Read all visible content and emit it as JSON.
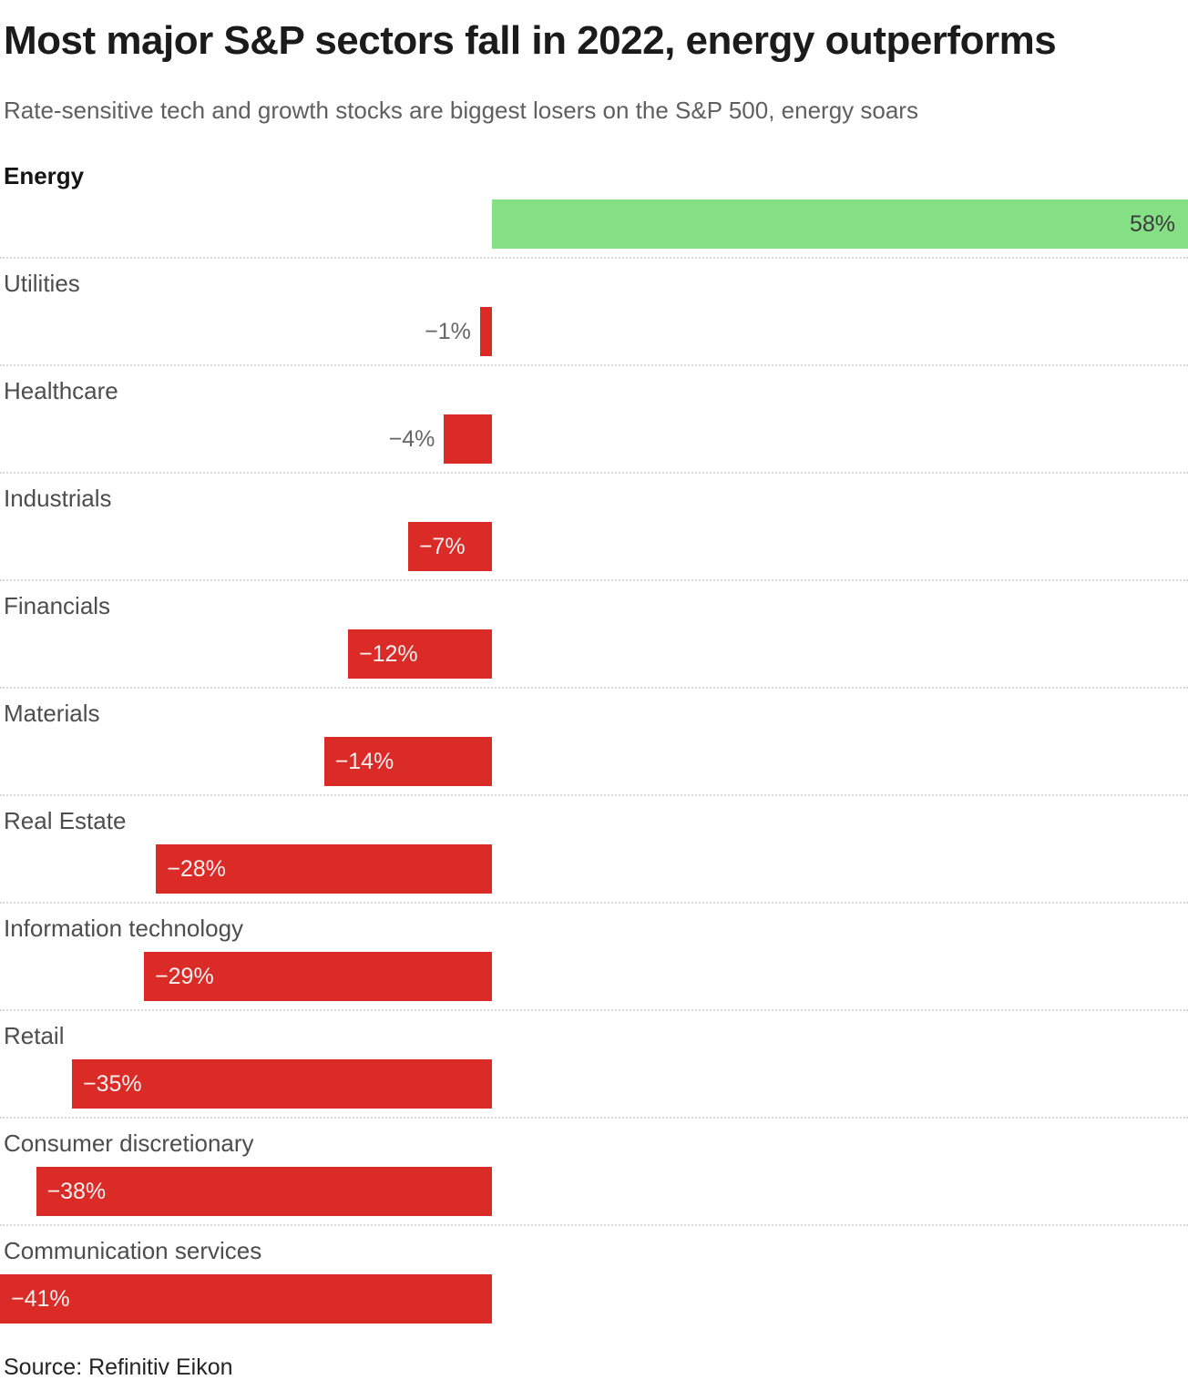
{
  "header": {
    "title": "Most major S&P sectors fall in 2022, energy outperforms",
    "subtitle": "Rate-sensitive tech and growth stocks are biggest losers on the S&P 500, energy soars"
  },
  "footer": {
    "source": "Source: Refinitiv Eikon"
  },
  "chart_data": {
    "type": "bar",
    "orientation": "horizontal",
    "unit": "%",
    "xlim": [
      -41,
      58
    ],
    "categories": [
      "Energy",
      "Utilities",
      "Healthcare",
      "Industrials",
      "Financials",
      "Materials",
      "Real Estate",
      "Information technology",
      "Retail",
      "Consumer discretionary",
      "Communication services"
    ],
    "values": [
      58,
      -1,
      -4,
      -7,
      -12,
      -14,
      -28,
      -29,
      -35,
      -38,
      -41
    ],
    "value_labels": [
      "58%",
      "−1%",
      "−4%",
      "−7%",
      "−12%",
      "−14%",
      "−28%",
      "−29%",
      "−35%",
      "−38%",
      "−41%"
    ],
    "emphasis_index": 0,
    "legend": false,
    "grid": "dotted-row-separators",
    "colors": {
      "positive_bar": "#85e085",
      "negative_bar": "#da2b27",
      "value_inside_negative": "#ffffff",
      "value_inside_positive": "#3d3d3d",
      "value_outside": "#666666",
      "separator": "#d8d8d8",
      "title": "#1b1b1b",
      "subtitle": "#5f5f5f",
      "category_label": "#4d4d4d"
    }
  }
}
